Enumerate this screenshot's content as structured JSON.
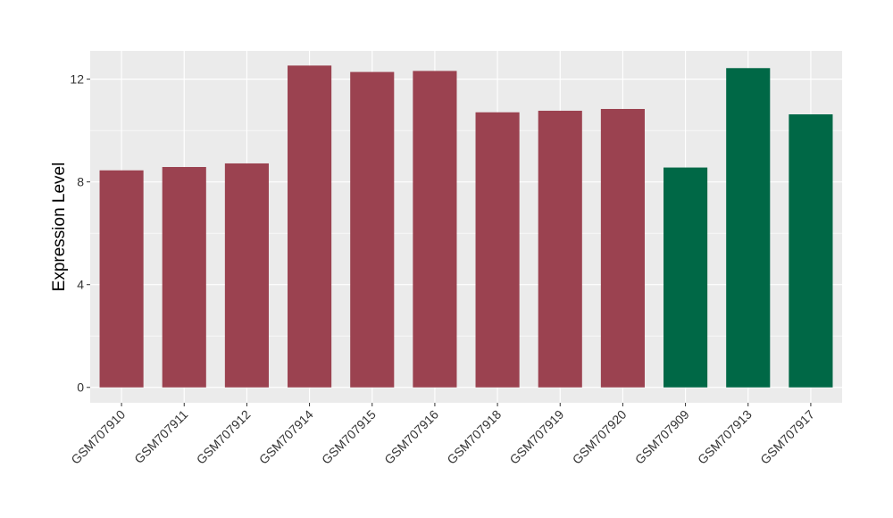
{
  "chart_data": {
    "type": "bar",
    "title": "",
    "xlabel": "",
    "ylabel": "Expression Level",
    "ylim": [
      -0.6,
      13.1
    ],
    "yticks": [
      0,
      4,
      8,
      12
    ],
    "grid": true,
    "legend": "none",
    "panel_background": "#ebebeb",
    "categories": [
      "GSM707910",
      "GSM707911",
      "GSM707912",
      "GSM707914",
      "GSM707915",
      "GSM707916",
      "GSM707918",
      "GSM707919",
      "GSM707920",
      "GSM707909",
      "GSM707913",
      "GSM707917"
    ],
    "values": [
      8.45,
      8.58,
      8.72,
      12.53,
      12.28,
      12.32,
      10.71,
      10.77,
      10.84,
      8.56,
      12.43,
      10.63
    ],
    "colors": [
      "#9b4250",
      "#9b4250",
      "#9b4250",
      "#9b4250",
      "#9b4250",
      "#9b4250",
      "#9b4250",
      "#9b4250",
      "#9b4250",
      "#006846",
      "#006846",
      "#006846"
    ]
  }
}
